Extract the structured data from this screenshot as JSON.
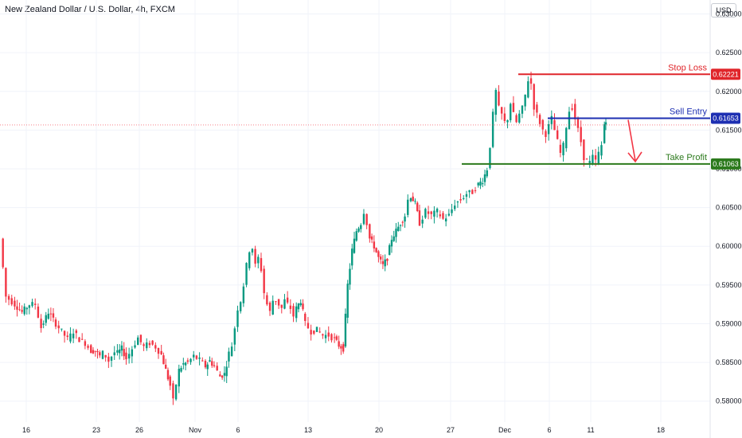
{
  "header": {
    "title": "New Zealand Dollar / U.S. Dollar, 4h, FXCM",
    "currency": "USD"
  },
  "colors": {
    "up": "#089981",
    "down": "#f23645",
    "stop": "#e0262b",
    "entry": "#1d2fb2",
    "target": "#2c7a1d",
    "grid": "#f0f3fa",
    "text": "#131722"
  },
  "chart_data": {
    "type": "candlestick",
    "title": "New Zealand Dollar / U.S. Dollar, 4h, FXCM",
    "y_axis": {
      "position": "right",
      "ylim": [
        0.5773,
        0.6318
      ],
      "ticks": [
        "0.63000",
        "0.62500",
        "0.62000",
        "0.61500",
        "0.61000",
        "0.60500",
        "0.60000",
        "0.59500",
        "0.59000",
        "0.58500",
        "0.58000"
      ]
    },
    "x_axis": {
      "ticks": [
        "16",
        "23",
        "26",
        "Nov",
        "6",
        "13",
        "20",
        "27",
        "Dec",
        "6",
        "11",
        "18"
      ]
    },
    "current_price": 0.61566,
    "levels": [
      {
        "name": "Stop Loss",
        "value": "0.62221",
        "x_from": "Dec 1"
      },
      {
        "name": "Sell Entry",
        "value": "0.61653",
        "x_from": "Dec 5"
      },
      {
        "name": "Take Profit",
        "value": "0.61063",
        "x_from": "Nov 28"
      }
    ],
    "annotation": "red arrow from Sell Entry down to Take Profit",
    "price_path": [
      [
        0,
        0.601
      ],
      [
        4,
        0.5935
      ],
      [
        10,
        0.5925
      ],
      [
        15,
        0.5915
      ],
      [
        20,
        0.5925
      ],
      [
        24,
        0.5925
      ],
      [
        28,
        0.5895
      ],
      [
        33,
        0.5915
      ],
      [
        38,
        0.59
      ],
      [
        42,
        0.589
      ],
      [
        46,
        0.588
      ],
      [
        50,
        0.589
      ],
      [
        54,
        0.588
      ],
      [
        58,
        0.5875
      ],
      [
        62,
        0.5865
      ],
      [
        65,
        0.5865
      ],
      [
        68,
        0.5858
      ],
      [
        70,
        0.5862
      ],
      [
        72,
        0.5858
      ],
      [
        74,
        0.5852
      ],
      [
        76,
        0.5858
      ],
      [
        78,
        0.5863
      ],
      [
        80,
        0.5862
      ],
      [
        83,
        0.5868
      ],
      [
        86,
        0.5855
      ],
      [
        90,
        0.5868
      ],
      [
        94,
        0.5882
      ],
      [
        98,
        0.587
      ],
      [
        102,
        0.5875
      ],
      [
        106,
        0.587
      ],
      [
        110,
        0.586
      ],
      [
        113,
        0.584
      ],
      [
        116,
        0.582
      ],
      [
        118,
        0.58
      ],
      [
        120,
        0.5822
      ],
      [
        122,
        0.584
      ],
      [
        125,
        0.5848
      ],
      [
        128,
        0.585
      ],
      [
        132,
        0.5858
      ],
      [
        136,
        0.5853
      ],
      [
        140,
        0.5845
      ],
      [
        143,
        0.5852
      ],
      [
        146,
        0.5845
      ],
      [
        150,
        0.5832
      ],
      [
        153,
        0.5835
      ],
      [
        156,
        0.5862
      ],
      [
        158,
        0.5872
      ],
      [
        160,
        0.5895
      ],
      [
        162,
        0.592
      ],
      [
        164,
        0.593
      ],
      [
        166,
        0.595
      ],
      [
        168,
        0.5975
      ],
      [
        170,
        0.5995
      ],
      [
        172,
        0.5998
      ],
      [
        174,
        0.5975
      ],
      [
        176,
        0.5985
      ],
      [
        178,
        0.597
      ],
      [
        180,
        0.594
      ],
      [
        182,
        0.5925
      ],
      [
        184,
        0.5915
      ],
      [
        186,
        0.593
      ],
      [
        188,
        0.593
      ],
      [
        190,
        0.5925
      ],
      [
        192,
        0.592
      ],
      [
        194,
        0.593
      ],
      [
        196,
        0.5925
      ],
      [
        198,
        0.592
      ],
      [
        200,
        0.591
      ],
      [
        202,
        0.592
      ],
      [
        205,
        0.593
      ],
      [
        208,
        0.59
      ],
      [
        212,
        0.589
      ],
      [
        216,
        0.5892
      ],
      [
        220,
        0.5885
      ],
      [
        224,
        0.5885
      ],
      [
        228,
        0.588
      ],
      [
        231,
        0.5872
      ],
      [
        234,
        0.5868
      ],
      [
        237,
        0.595
      ],
      [
        240,
        0.5995
      ],
      [
        243,
        0.602
      ],
      [
        246,
        0.603
      ],
      [
        248,
        0.6045
      ],
      [
        250,
        0.603
      ],
      [
        252,
        0.601
      ],
      [
        255,
        0.6
      ],
      [
        258,
        0.5985
      ],
      [
        261,
        0.5975
      ],
      [
        264,
        0.5985
      ],
      [
        267,
        0.601
      ],
      [
        270,
        0.602
      ],
      [
        273,
        0.603
      ],
      [
        276,
        0.604
      ],
      [
        278,
        0.606
      ],
      [
        280,
        0.6065
      ],
      [
        283,
        0.6055
      ],
      [
        286,
        0.603
      ],
      [
        290,
        0.6045
      ],
      [
        294,
        0.604
      ],
      [
        298,
        0.6045
      ],
      [
        302,
        0.6035
      ],
      [
        306,
        0.604
      ],
      [
        310,
        0.6055
      ],
      [
        314,
        0.606
      ],
      [
        318,
        0.6068
      ],
      [
        322,
        0.607
      ],
      [
        326,
        0.608
      ],
      [
        329,
        0.6085
      ],
      [
        332,
        0.61
      ],
      [
        334,
        0.613
      ],
      [
        336,
        0.617
      ],
      [
        338,
        0.62
      ],
      [
        340,
        0.6178
      ],
      [
        342,
        0.617
      ],
      [
        344,
        0.616
      ],
      [
        346,
        0.6165
      ],
      [
        348,
        0.6185
      ],
      [
        350,
        0.617
      ],
      [
        352,
        0.616
      ],
      [
        354,
        0.617
      ],
      [
        356,
        0.6178
      ],
      [
        358,
        0.6195
      ],
      [
        360,
        0.6215
      ],
      [
        362,
        0.621
      ],
      [
        364,
        0.618
      ],
      [
        366,
        0.617
      ],
      [
        368,
        0.616
      ],
      [
        370,
        0.615
      ],
      [
        372,
        0.6145
      ],
      [
        374,
        0.6155
      ],
      [
        376,
        0.6165
      ],
      [
        378,
        0.615
      ],
      [
        380,
        0.6135
      ],
      [
        382,
        0.612
      ],
      [
        384,
        0.613
      ],
      [
        386,
        0.6155
      ],
      [
        388,
        0.6175
      ],
      [
        390,
        0.618
      ],
      [
        392,
        0.6165
      ],
      [
        394,
        0.615
      ],
      [
        396,
        0.6135
      ],
      [
        398,
        0.6115
      ],
      [
        400,
        0.611
      ],
      [
        402,
        0.6108
      ],
      [
        404,
        0.6115
      ],
      [
        406,
        0.611
      ],
      [
        408,
        0.612
      ],
      [
        410,
        0.613
      ],
      [
        412,
        0.6158
      ],
      [
        413,
        0.6164
      ]
    ]
  }
}
